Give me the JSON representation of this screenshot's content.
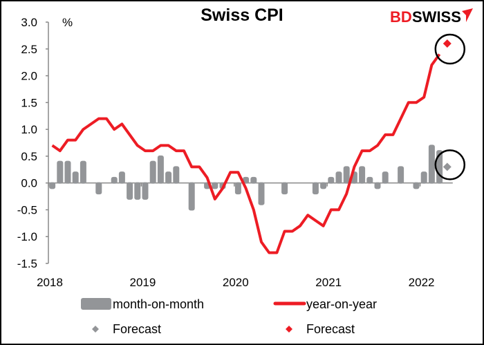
{
  "chart_data": {
    "type": "bar+line",
    "title": "Swiss CPI",
    "ylabel": "%",
    "logo": "BDSWISS",
    "ylim": [
      -1.5,
      3.0
    ],
    "yticks": [
      "3.0",
      "2.5",
      "2.0",
      "1.5",
      "1.0",
      "0.5",
      "0.0",
      "-0.5",
      "-1.0",
      "-1.5"
    ],
    "xtick_labels": [
      "2018",
      "2019",
      "2020",
      "2021",
      "2022"
    ],
    "grid": false,
    "legend_placement": "bottom",
    "colors": {
      "mom": "#939598",
      "yoy": "#ed1c24",
      "annotation": "#000000"
    },
    "period": "monthly, Jan 2018 - Mar 2022",
    "series": [
      {
        "name": "month-on-month",
        "kind": "bar",
        "values": [
          -0.1,
          0.4,
          0.4,
          0.2,
          0.4,
          0.0,
          -0.2,
          0.0,
          0.1,
          0.2,
          -0.3,
          -0.3,
          -0.3,
          0.4,
          0.5,
          0.2,
          0.3,
          0.0,
          -0.5,
          0.0,
          -0.1,
          -0.1,
          -0.1,
          0.0,
          -0.2,
          0.1,
          0.1,
          -0.4,
          0.0,
          0.0,
          -0.2,
          0.0,
          0.0,
          0.0,
          -0.2,
          -0.1,
          0.1,
          0.2,
          0.3,
          0.2,
          0.3,
          0.1,
          -0.1,
          0.2,
          0.0,
          0.3,
          0.0,
          -0.1,
          0.2,
          0.7,
          0.6
        ]
      },
      {
        "name": "year-on-year",
        "kind": "line",
        "values": [
          0.7,
          0.6,
          0.8,
          0.8,
          1.0,
          1.1,
          1.2,
          1.2,
          1.0,
          1.1,
          0.9,
          0.7,
          0.6,
          0.6,
          0.7,
          0.7,
          0.6,
          0.6,
          0.3,
          0.3,
          0.1,
          -0.3,
          -0.1,
          0.2,
          0.2,
          -0.1,
          -0.5,
          -1.1,
          -1.3,
          -1.3,
          -0.9,
          -0.9,
          -0.8,
          -0.6,
          -0.7,
          -0.8,
          -0.5,
          -0.5,
          -0.2,
          0.3,
          0.6,
          0.6,
          0.7,
          0.9,
          0.9,
          1.2,
          1.5,
          1.5,
          1.6,
          2.2,
          2.4
        ]
      },
      {
        "name": "Forecast",
        "kind": "marker",
        "of": "month-on-month",
        "period": "Apr 2022",
        "value": 0.3
      },
      {
        "name": "Forecast",
        "kind": "marker",
        "of": "year-on-year",
        "period": "Apr 2022",
        "value": 2.6
      }
    ]
  }
}
